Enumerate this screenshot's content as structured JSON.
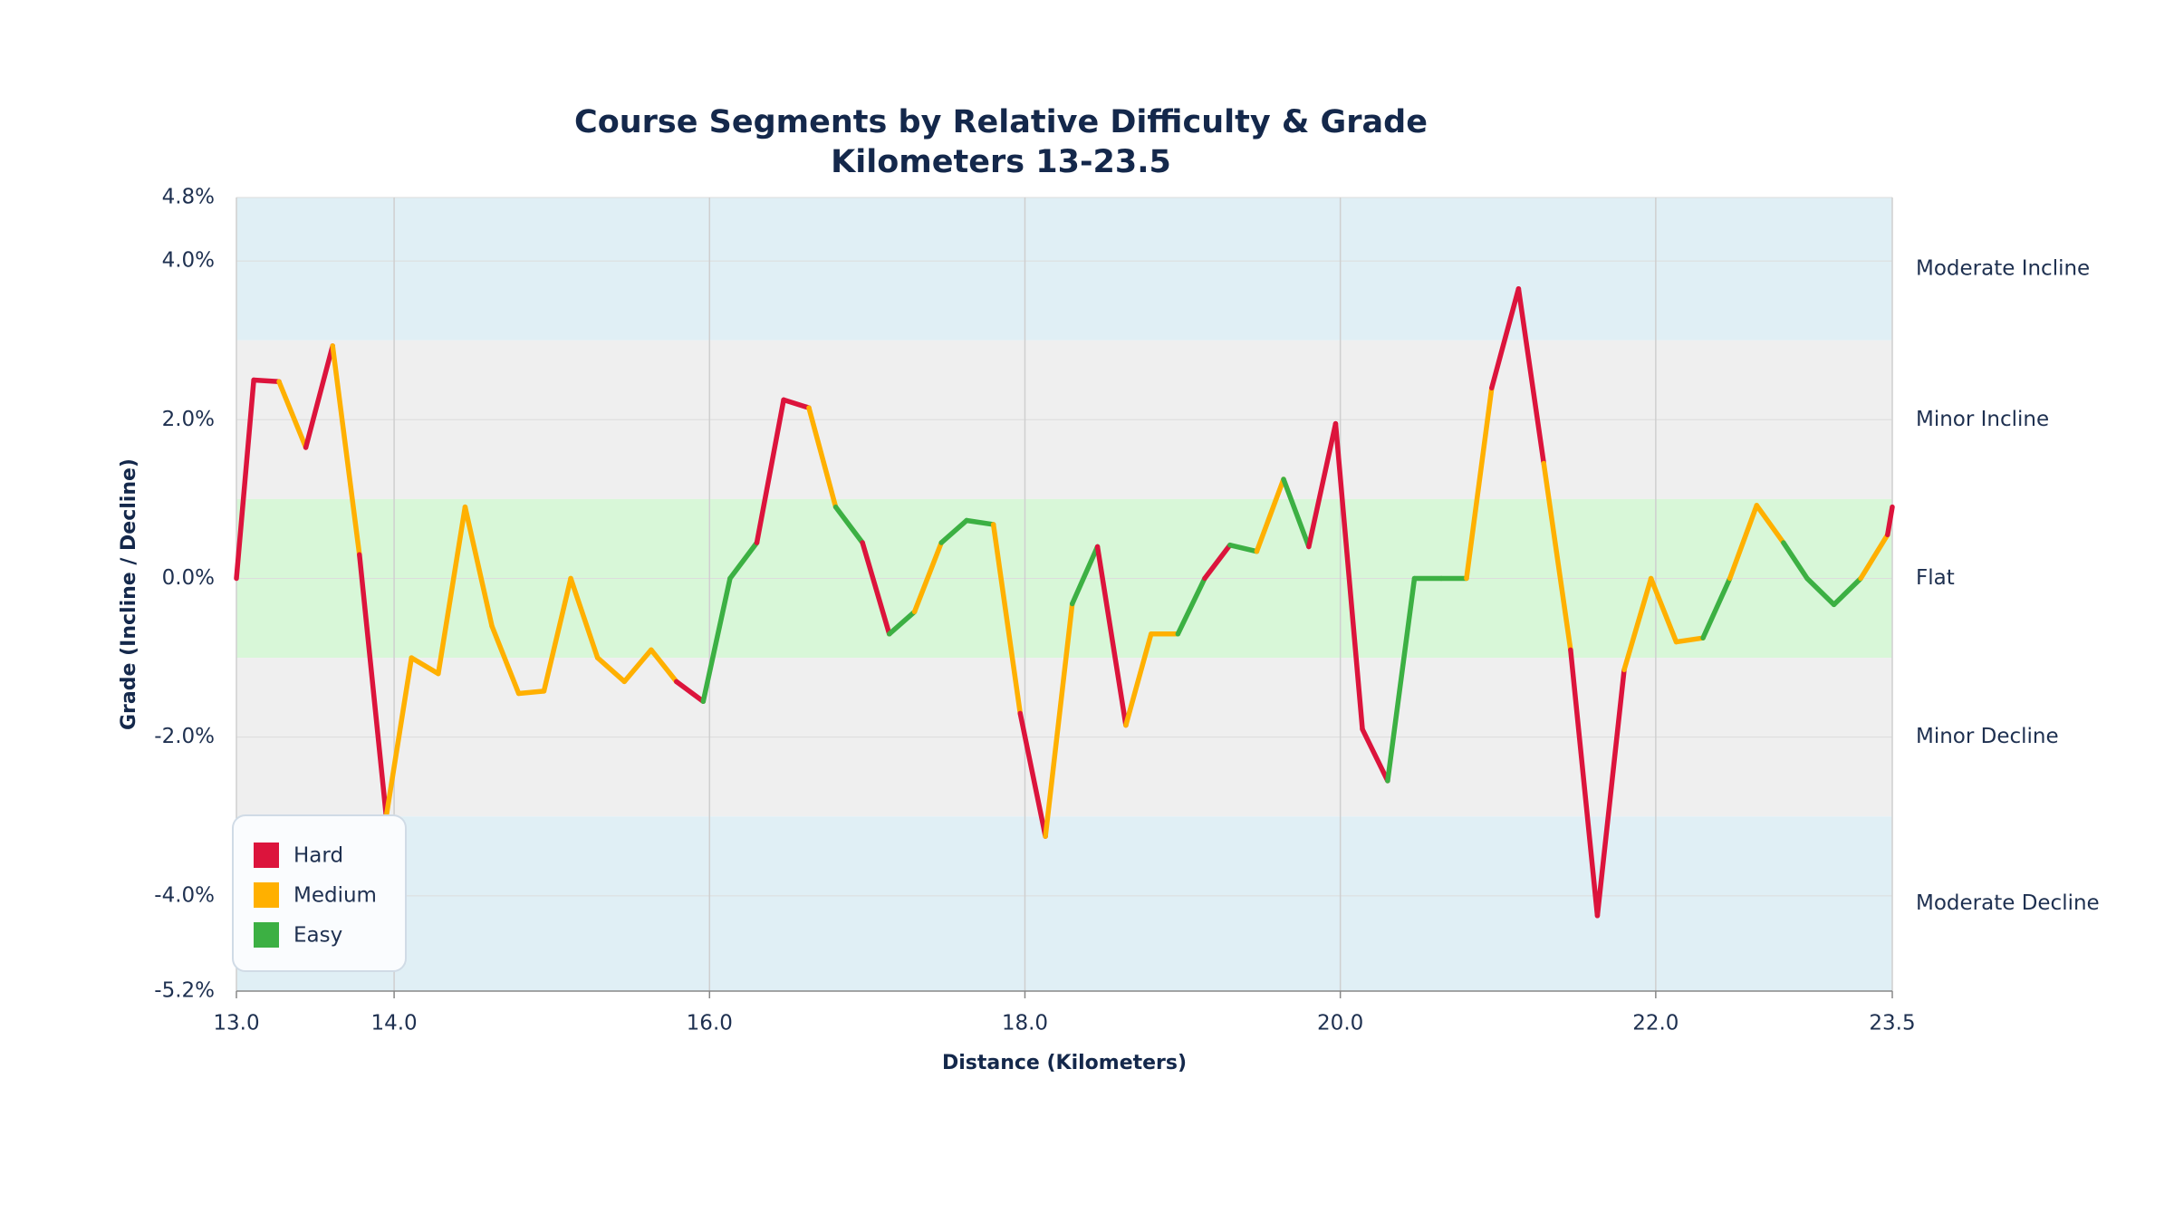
{
  "chart_data": {
    "type": "line",
    "title": "Course Segments by Relative Difficulty & Grade",
    "subtitle": "Kilometers 13-23.5",
    "x_label": "Distance (Kilometers)",
    "y_label": "Grade (Incline / Decline)",
    "x": [
      13.0,
      13.11,
      13.27,
      13.44,
      13.61,
      13.78,
      13.95,
      14.11,
      14.28,
      14.45,
      14.62,
      14.79,
      14.95,
      15.12,
      15.29,
      15.46,
      15.63,
      15.79,
      15.96,
      16.13,
      16.3,
      16.47,
      16.63,
      16.8,
      16.97,
      17.14,
      17.3,
      17.47,
      17.63,
      17.8,
      17.97,
      18.13,
      18.3,
      18.46,
      18.64,
      18.8,
      18.97,
      19.14,
      19.3,
      19.47,
      19.64,
      19.8,
      19.97,
      20.14,
      20.3,
      20.47,
      20.64,
      20.8,
      20.96,
      21.13,
      21.29,
      21.46,
      21.63,
      21.8,
      21.97,
      22.13,
      22.3,
      22.47,
      22.64,
      22.81,
      22.96,
      23.13,
      23.3,
      23.47,
      23.5
    ],
    "values": [
      0.0,
      2.5,
      2.48,
      1.65,
      2.93,
      0.3,
      -3.0,
      -1.0,
      -1.2,
      0.9,
      -0.6,
      -1.45,
      -1.42,
      0.0,
      -1.0,
      -1.3,
      -0.9,
      -1.3,
      -1.55,
      0.0,
      0.45,
      2.25,
      2.15,
      0.9,
      0.45,
      -0.7,
      -0.42,
      0.45,
      0.73,
      0.68,
      -1.7,
      -3.25,
      -0.32,
      0.4,
      -1.85,
      -0.7,
      -0.7,
      0.0,
      0.42,
      0.34,
      1.25,
      0.4,
      1.95,
      -1.9,
      -2.55,
      0.0,
      0.0,
      0.0,
      2.4,
      3.65,
      1.45,
      -0.9,
      -4.25,
      -1.15,
      0.0,
      -0.8,
      -0.75,
      0.0,
      0.92,
      0.45,
      0.0,
      -0.33,
      0.0,
      0.55,
      0.9
    ],
    "levels": [
      {
        "name": "Hard",
        "color": "#dc143c"
      },
      {
        "name": "Medium",
        "color": "#ffb000"
      },
      {
        "name": "Easy",
        "color": "#3cb043"
      }
    ],
    "segment_level": [
      0,
      0,
      1,
      0,
      1,
      0,
      1,
      1,
      1,
      1,
      1,
      1,
      1,
      1,
      1,
      1,
      1,
      0,
      2,
      2,
      0,
      0,
      1,
      2,
      0,
      2,
      1,
      2,
      2,
      1,
      0,
      1,
      2,
      0,
      1,
      1,
      2,
      0,
      2,
      1,
      2,
      0,
      0,
      0,
      2,
      2,
      2,
      1,
      0,
      0,
      1,
      0,
      0,
      1,
      1,
      1,
      2,
      1,
      1,
      2,
      2,
      2,
      1,
      0
    ],
    "bands": [
      {
        "label": "Moderate Incline",
        "from": 3,
        "to": 4.8,
        "color": "#e0eff5"
      },
      {
        "label": "Minor Incline",
        "from": 1,
        "to": 3,
        "color": "#efefef"
      },
      {
        "label": "Flat",
        "from": -1,
        "to": 1,
        "color": "#d8f7d8"
      },
      {
        "label": "Minor Decline",
        "from": -3,
        "to": -1,
        "color": "#efefef"
      },
      {
        "label": "Moderate Decline",
        "from": -5.2,
        "to": -3,
        "color": "#e0eff5"
      }
    ],
    "xlim": [
      13.0,
      23.5
    ],
    "ylim": [
      -5.2,
      4.8
    ],
    "xticks": [
      {
        "value": 13,
        "label": "13.0"
      },
      {
        "value": 14,
        "label": "14.0"
      },
      {
        "value": 16,
        "label": "16.0"
      },
      {
        "value": 18,
        "label": "18.0"
      },
      {
        "value": 20,
        "label": "20.0"
      },
      {
        "value": 22,
        "label": "22.0"
      },
      {
        "value": 23.5,
        "label": "23.5"
      }
    ],
    "yticks": [
      {
        "value": 4.8,
        "label": "4.8%"
      },
      {
        "value": 4,
        "label": "4.0%"
      },
      {
        "value": 2,
        "label": "2.0%"
      },
      {
        "value": 0,
        "label": "0.0%"
      },
      {
        "value": -2,
        "label": "-2.0%"
      },
      {
        "value": -4,
        "label": "-4.0%"
      },
      {
        "value": -5.2,
        "label": "-5.2%"
      }
    ],
    "grid": true,
    "legend_position": "lower-left"
  }
}
